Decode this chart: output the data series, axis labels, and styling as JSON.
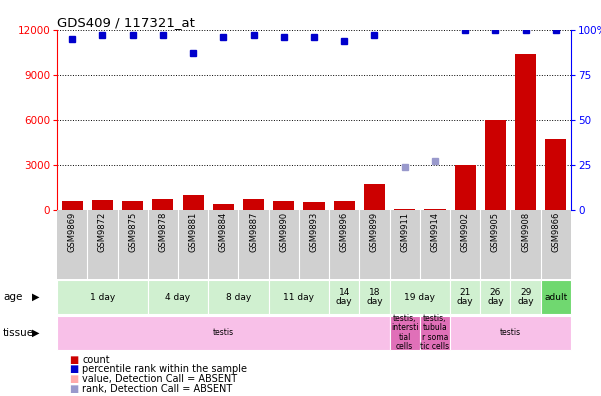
{
  "title": "GDS409 / 117321_at",
  "samples": [
    "GSM9869",
    "GSM9872",
    "GSM9875",
    "GSM9878",
    "GSM9881",
    "GSM9884",
    "GSM9887",
    "GSM9890",
    "GSM9893",
    "GSM9896",
    "GSM9899",
    "GSM9911",
    "GSM9914",
    "GSM9902",
    "GSM9905",
    "GSM9908",
    "GSM9866"
  ],
  "count_values": [
    600,
    650,
    600,
    750,
    1000,
    400,
    700,
    600,
    550,
    600,
    1700,
    80,
    80,
    3000,
    6000,
    10400,
    4700
  ],
  "count_absent": [
    false,
    false,
    false,
    false,
    false,
    false,
    false,
    false,
    false,
    false,
    false,
    false,
    false,
    false,
    false,
    false,
    false
  ],
  "rank_values": [
    95,
    97,
    97,
    97,
    87,
    96,
    97,
    96,
    96,
    94,
    97,
    24,
    27,
    100,
    100,
    100,
    100
  ],
  "rank_absent": [
    false,
    false,
    false,
    false,
    false,
    false,
    false,
    false,
    false,
    false,
    false,
    true,
    true,
    false,
    false,
    false,
    false
  ],
  "ylim_left": [
    0,
    12000
  ],
  "ylim_right": [
    0,
    100
  ],
  "yticks_left": [
    0,
    3000,
    6000,
    9000,
    12000
  ],
  "yticks_right": [
    0,
    25,
    50,
    75,
    100
  ],
  "age_groups": [
    {
      "label": "1 day",
      "cols": [
        0,
        1,
        2
      ]
    },
    {
      "label": "4 day",
      "cols": [
        3,
        4
      ]
    },
    {
      "label": "8 day",
      "cols": [
        5,
        6
      ]
    },
    {
      "label": "11 day",
      "cols": [
        7,
        8
      ]
    },
    {
      "label": "14\nday",
      "cols": [
        9
      ]
    },
    {
      "label": "18\nday",
      "cols": [
        10
      ]
    },
    {
      "label": "19 day",
      "cols": [
        11,
        12
      ]
    },
    {
      "label": "21\nday",
      "cols": [
        13
      ]
    },
    {
      "label": "26\nday",
      "cols": [
        14
      ]
    },
    {
      "label": "29\nday",
      "cols": [
        15
      ]
    },
    {
      "label": "adult",
      "cols": [
        16
      ]
    }
  ],
  "tissue_groups": [
    {
      "label": "testis",
      "cols": [
        0,
        1,
        2,
        3,
        4,
        5,
        6,
        7,
        8,
        9,
        10
      ],
      "color": "#f8c0e8"
    },
    {
      "label": "testis,\nintersti\ntial\ncells",
      "cols": [
        11
      ],
      "color": "#e070b8"
    },
    {
      "label": "testis,\ntubula\nr soma\ntic cells",
      "cols": [
        12
      ],
      "color": "#e070b8"
    },
    {
      "label": "testis",
      "cols": [
        13,
        14,
        15,
        16
      ],
      "color": "#f8c0e8"
    }
  ],
  "age_color": "#d0f0d0",
  "adult_color": "#70d870",
  "bar_color": "#cc0000",
  "rank_color": "#0000cc",
  "absent_rank_color": "#9999cc",
  "absent_count_color": "#ffaaaa",
  "sample_bg": "#d0d0d0",
  "bg_color": "#ffffff",
  "legend_items": [
    {
      "label": "count",
      "color": "#cc0000"
    },
    {
      "label": "percentile rank within the sample",
      "color": "#0000cc"
    },
    {
      "label": "value, Detection Call = ABSENT",
      "color": "#ffaaaa"
    },
    {
      "label": "rank, Detection Call = ABSENT",
      "color": "#9999cc"
    }
  ]
}
